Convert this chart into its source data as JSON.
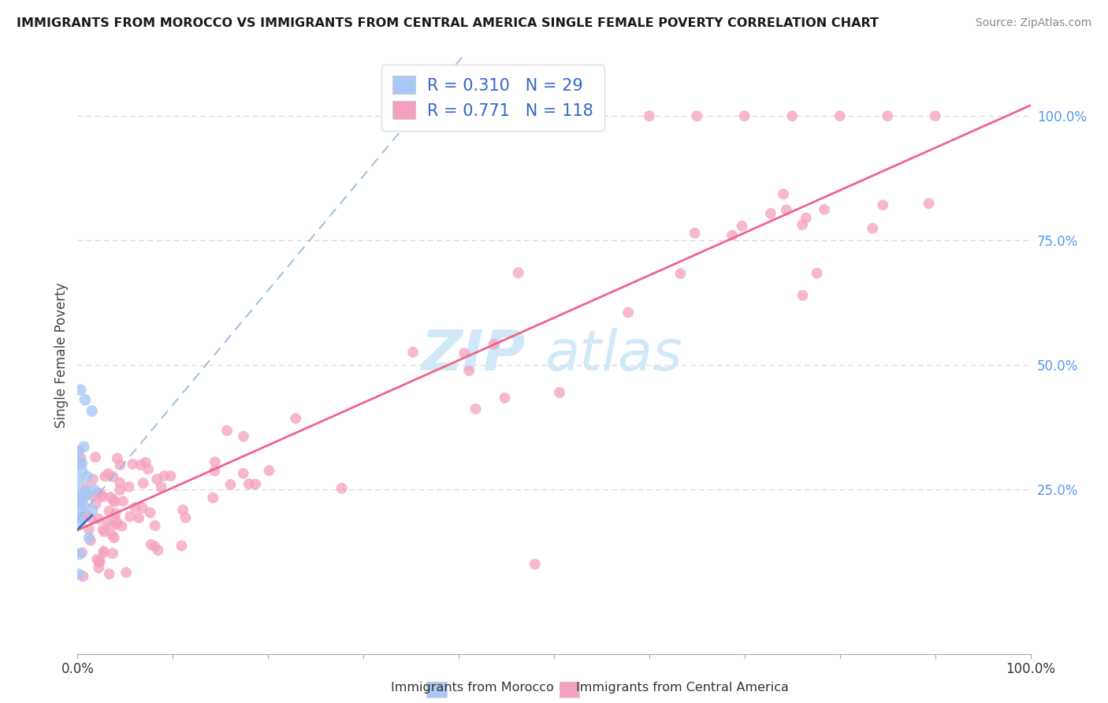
{
  "title": "IMMIGRANTS FROM MOROCCO VS IMMIGRANTS FROM CENTRAL AMERICA SINGLE FEMALE POVERTY CORRELATION CHART",
  "source": "Source: ZipAtlas.com",
  "ylabel": "Single Female Poverty",
  "legend_label1": "Immigrants from Morocco",
  "legend_label2": "Immigrants from Central America",
  "R1": 0.31,
  "N1": 29,
  "R2": 0.771,
  "N2": 118,
  "color_morocco": "#a8c8f5",
  "color_central": "#f5a0c0",
  "color_morocco_line_dash": "#99bbdd",
  "color_morocco_line_solid": "#4477bb",
  "color_central_line": "#ee6688",
  "color_legend_text": "#3366cc",
  "watermark_color": "#d0e8f8",
  "background_color": "#ffffff",
  "grid_color": "#cccccc",
  "right_axis_color": "#5599ee",
  "xlim": [
    0.0,
    1.0
  ],
  "ylim": [
    -0.08,
    1.12
  ]
}
